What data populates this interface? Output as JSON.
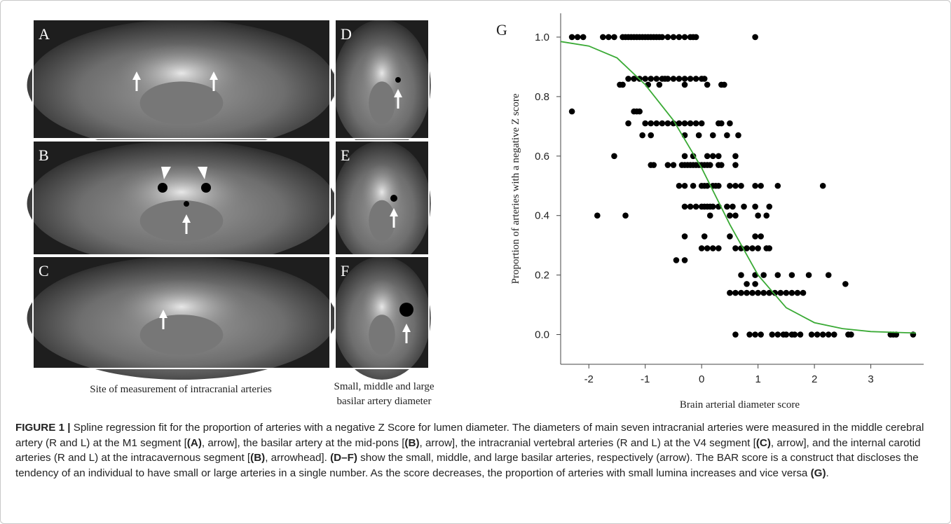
{
  "panels": [
    {
      "label": "A"
    },
    {
      "label": "B"
    },
    {
      "label": "C"
    },
    {
      "label": "D"
    },
    {
      "label": "E"
    },
    {
      "label": "F"
    }
  ],
  "left_caption": "Site of measurement of intracranial arteries",
  "middle_caption": [
    "Small, middle and large",
    "basilar artery diameter"
  ],
  "chart_data": {
    "type": "scatter",
    "panel_label": "G",
    "x_label": "Brain arterial diameter score",
    "y_label": "Proportion of arteries with a negative Z score",
    "xlim": [
      -2.5,
      3.9
    ],
    "ylim": [
      -0.1,
      1.08
    ],
    "xticks": [
      -2,
      -1,
      0,
      1,
      2,
      3
    ],
    "yticks": [
      {
        "value": 0,
        "label": "0.0"
      },
      {
        "value": 0.2,
        "label": "0.2"
      },
      {
        "value": 0.4,
        "label": "0.4"
      },
      {
        "value": 0.6,
        "label": "0.6"
      },
      {
        "value": 0.8,
        "label": "0.8"
      },
      {
        "value": 1,
        "label": "1.0"
      }
    ],
    "series": [
      {
        "type": "scatter",
        "color": "#000000",
        "x": [
          -2.3,
          -2.2,
          -2.1,
          -1.75,
          -1.65,
          -1.55,
          -1.4,
          -1.35,
          -1.3,
          -1.25,
          -1.2,
          -1.15,
          -1.1,
          -1.05,
          -1.0,
          -0.95,
          -0.9,
          -0.85,
          -0.8,
          -0.75,
          -0.7,
          -0.6,
          -0.5,
          -0.4,
          -0.3,
          -0.2,
          -0.15,
          -0.1,
          0.95,
          -1.3,
          -1.2,
          -1.1,
          -1.0,
          -0.9,
          -0.8,
          -0.7,
          -0.6,
          -0.5,
          -0.4,
          -0.3,
          -0.2,
          -0.1,
          0.0,
          0.05,
          -0.65,
          -1.45,
          -1.4,
          -0.95,
          -0.75,
          -0.3,
          0.1,
          0.35,
          0.4,
          -2.3,
          -1.2,
          -1.15,
          -1.1,
          -1.3,
          -1.0,
          -0.9,
          -0.8,
          -0.7,
          -0.6,
          -0.5,
          -0.4,
          -0.3,
          -0.2,
          -0.1,
          0.0,
          0.3,
          0.35,
          0.5,
          -1.05,
          -0.9,
          -0.3,
          -0.05,
          0.2,
          0.45,
          0.65,
          -1.55,
          -0.3,
          -0.15,
          0.1,
          0.2,
          0.3,
          0.6,
          -0.9,
          -0.85,
          -0.6,
          -0.5,
          -0.35,
          -0.3,
          -0.25,
          -0.2,
          -0.15,
          -0.1,
          -0.05,
          0.0,
          0.05,
          0.1,
          0.15,
          0.3,
          0.35,
          0.6,
          -0.4,
          -0.3,
          -0.15,
          0.0,
          0.05,
          0.1,
          0.2,
          0.25,
          0.3,
          0.5,
          0.6,
          0.7,
          0.95,
          1.05,
          1.35,
          2.15,
          -0.3,
          -0.2,
          -0.1,
          0.0,
          0.05,
          0.1,
          0.15,
          0.2,
          0.3,
          0.45,
          0.55,
          0.75,
          0.95,
          1.2,
          -1.85,
          -1.35,
          0.15,
          0.5,
          0.6,
          1.0,
          1.15,
          -0.3,
          0.05,
          0.5,
          0.95,
          1.05,
          0.0,
          0.1,
          0.2,
          0.3,
          0.6,
          0.7,
          0.8,
          0.9,
          1.0,
          1.15,
          1.2,
          -0.45,
          -0.3,
          0.7,
          0.95,
          1.1,
          1.35,
          1.6,
          1.9,
          2.25,
          0.8,
          0.95,
          2.55,
          0.5,
          0.6,
          0.7,
          0.8,
          0.9,
          1.0,
          1.1,
          1.2,
          1.3,
          1.4,
          1.5,
          1.6,
          1.7,
          1.8,
          0.6,
          0.85,
          0.95,
          1.05,
          1.25,
          1.35,
          1.45,
          1.5,
          1.6,
          1.65,
          1.75,
          1.95,
          2.05,
          2.15,
          2.25,
          2.35,
          2.6,
          2.65,
          3.35,
          3.4,
          3.45,
          3.75
        ],
        "y": [
          1,
          1,
          1,
          1,
          1,
          1,
          1,
          1,
          1,
          1,
          1,
          1,
          1,
          1,
          1,
          1,
          1,
          1,
          1,
          1,
          1,
          1,
          1,
          1,
          1,
          1,
          1,
          1,
          1,
          0.86,
          0.86,
          0.86,
          0.86,
          0.86,
          0.86,
          0.86,
          0.86,
          0.86,
          0.86,
          0.86,
          0.86,
          0.86,
          0.86,
          0.86,
          0.86,
          0.84,
          0.84,
          0.84,
          0.84,
          0.84,
          0.84,
          0.84,
          0.84,
          0.75,
          0.75,
          0.75,
          0.75,
          0.71,
          0.71,
          0.71,
          0.71,
          0.71,
          0.71,
          0.71,
          0.71,
          0.71,
          0.71,
          0.71,
          0.71,
          0.71,
          0.71,
          0.71,
          0.67,
          0.67,
          0.67,
          0.67,
          0.67,
          0.67,
          0.67,
          0.6,
          0.6,
          0.6,
          0.6,
          0.6,
          0.6,
          0.6,
          0.57,
          0.57,
          0.57,
          0.57,
          0.57,
          0.57,
          0.57,
          0.57,
          0.57,
          0.57,
          0.57,
          0.57,
          0.57,
          0.57,
          0.57,
          0.57,
          0.57,
          0.57,
          0.5,
          0.5,
          0.5,
          0.5,
          0.5,
          0.5,
          0.5,
          0.5,
          0.5,
          0.5,
          0.5,
          0.5,
          0.5,
          0.5,
          0.5,
          0.5,
          0.43,
          0.43,
          0.43,
          0.43,
          0.43,
          0.43,
          0.43,
          0.43,
          0.43,
          0.43,
          0.43,
          0.43,
          0.43,
          0.43,
          0.4,
          0.4,
          0.4,
          0.4,
          0.4,
          0.4,
          0.4,
          0.33,
          0.33,
          0.33,
          0.33,
          0.33,
          0.29,
          0.29,
          0.29,
          0.29,
          0.29,
          0.29,
          0.29,
          0.29,
          0.29,
          0.29,
          0.29,
          0.25,
          0.25,
          0.2,
          0.2,
          0.2,
          0.2,
          0.2,
          0.2,
          0.2,
          0.17,
          0.17,
          0.17,
          0.14,
          0.14,
          0.14,
          0.14,
          0.14,
          0.14,
          0.14,
          0.14,
          0.14,
          0.14,
          0.14,
          0.14,
          0.14,
          0.14,
          0,
          0,
          0,
          0,
          0,
          0,
          0,
          0,
          0,
          0,
          0,
          0,
          0,
          0,
          0,
          0,
          0,
          0,
          0,
          0,
          0,
          0
        ]
      },
      {
        "type": "line",
        "color": "#3aaa35",
        "x": [
          -2.5,
          -2,
          -1.5,
          -1,
          -0.5,
          0,
          0.5,
          1,
          1.5,
          2,
          2.5,
          3,
          3.5,
          3.8
        ],
        "y": [
          0.985,
          0.97,
          0.93,
          0.84,
          0.72,
          0.56,
          0.37,
          0.2,
          0.09,
          0.04,
          0.02,
          0.01,
          0.007,
          0.005
        ]
      }
    ]
  },
  "caption": [
    {
      "text": "FIGURE 1 |",
      "bold": true
    },
    {
      "text": " Spline regression fit for the proportion of arteries with a negative Z Score for lumen diameter. The diameters of main seven intracranial arteries were measured in the middle cerebral artery (R and L) at the M1 segment [",
      "bold": false
    },
    {
      "text": "(A)",
      "bold": true
    },
    {
      "text": ", arrow], the basilar artery at the mid-pons [",
      "bold": false
    },
    {
      "text": "(B)",
      "bold": true
    },
    {
      "text": ", arrow], the intracranial vertebral arteries (R and L) at the V4 segment [",
      "bold": false
    },
    {
      "text": "(C)",
      "bold": true
    },
    {
      "text": ", arrow], and the internal carotid arteries (R and L) at the intracavernous segment [",
      "bold": false
    },
    {
      "text": "(B)",
      "bold": true
    },
    {
      "text": ", arrowhead]. ",
      "bold": false
    },
    {
      "text": "(D–F)",
      "bold": true
    },
    {
      "text": " show the small, middle, and large basilar arteries, respectively (arrow). The BAR score is a construct that discloses the tendency of an individual to have small or large arteries in a single number. As the score decreases, the proportion of arteries with small lumina increases and vice versa ",
      "bold": false
    },
    {
      "text": "(G)",
      "bold": true
    },
    {
      "text": ".",
      "bold": false
    }
  ]
}
